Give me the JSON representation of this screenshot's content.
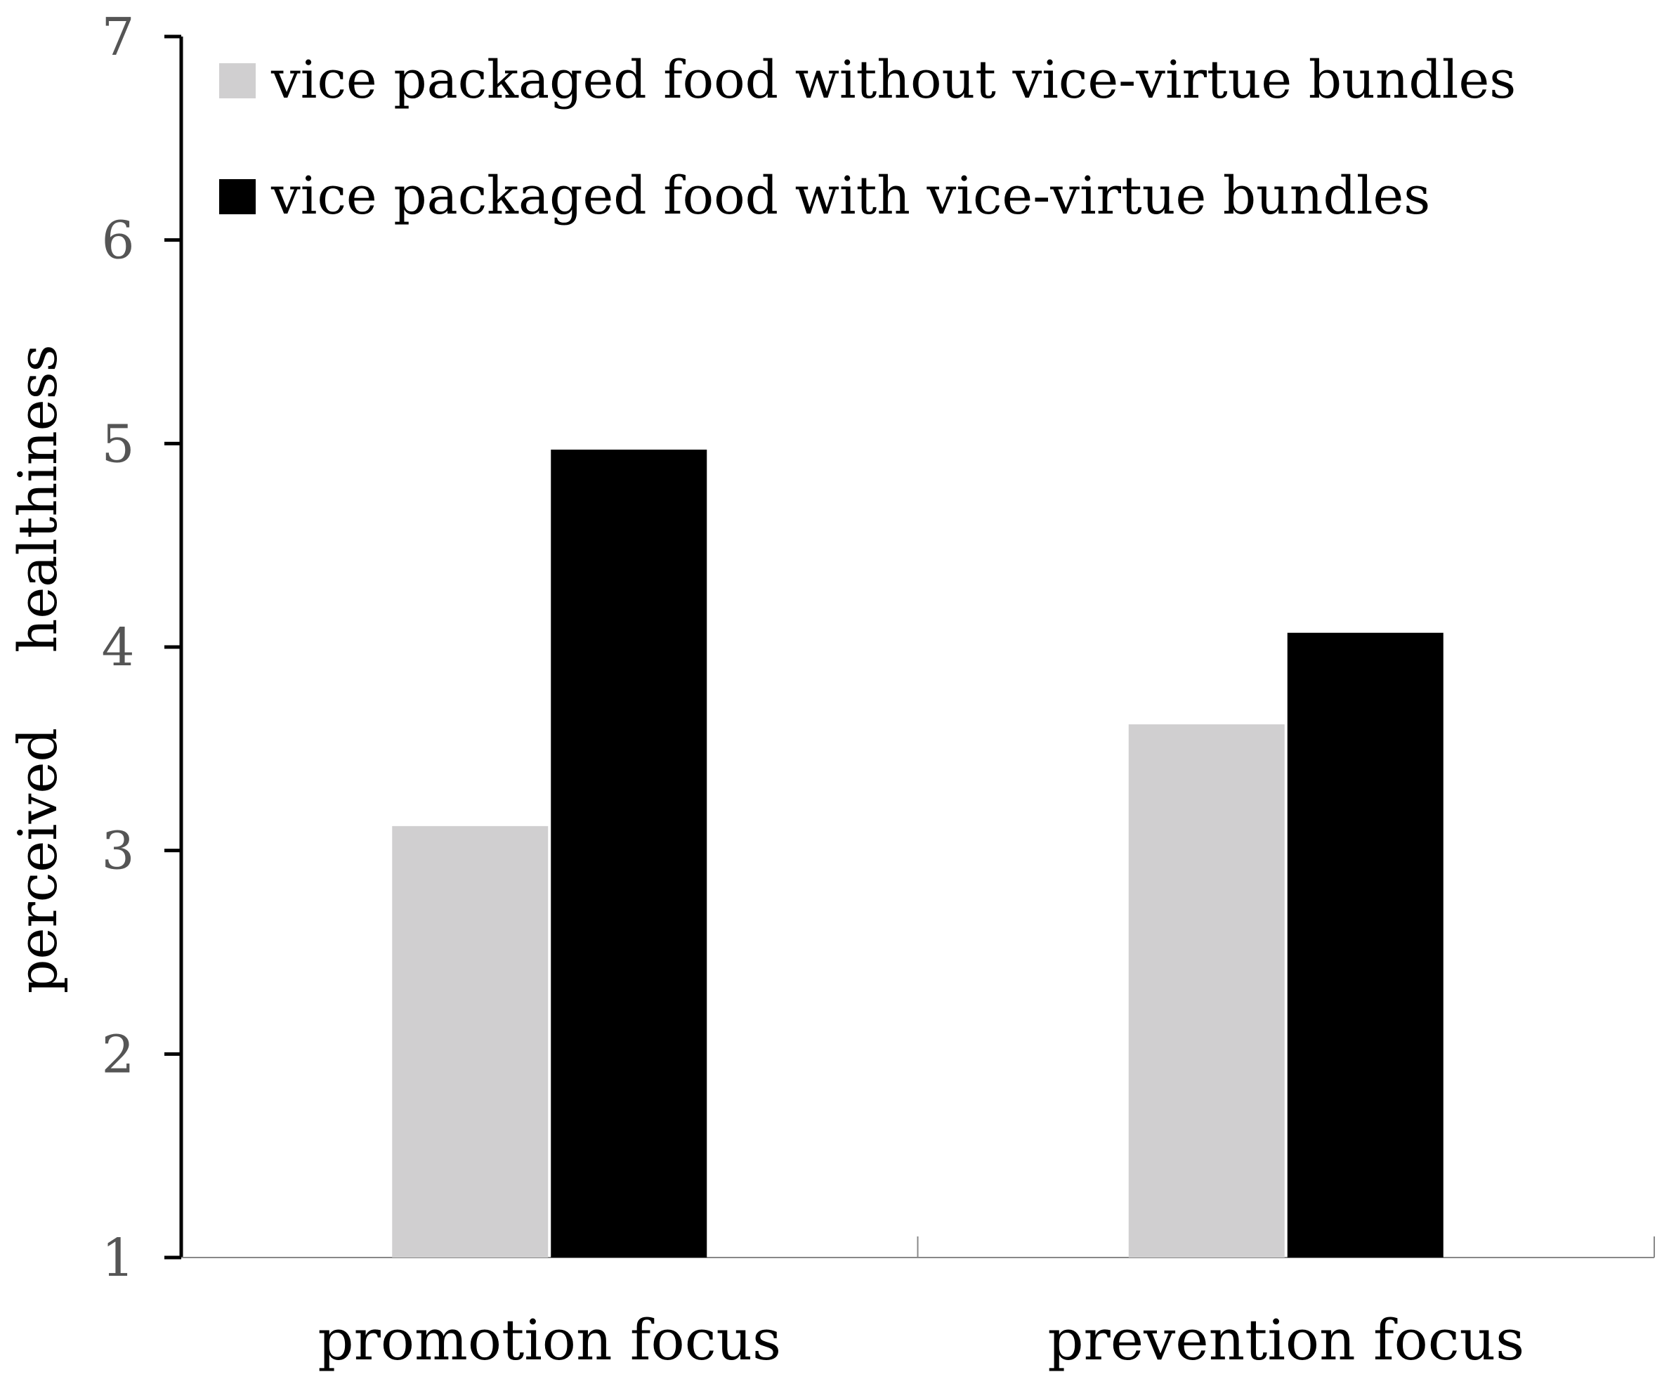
{
  "chart_data": {
    "type": "bar",
    "categories": [
      "promotion focus",
      "prevention focus"
    ],
    "series": [
      {
        "name": "vice packaged food without vice-virtue bundles",
        "values": [
          3.12,
          3.62
        ],
        "color": "#d0cfd0"
      },
      {
        "name": "vice packaged food with vice-virtue bundles",
        "values": [
          4.97,
          4.07
        ],
        "color": "#000000"
      }
    ],
    "ylabel_words": [
      "perceived",
      "healthiness"
    ],
    "xlabel": "",
    "title": "",
    "ylim": [
      1,
      7
    ],
    "yticks": [
      "1",
      "2",
      "3",
      "4",
      "5",
      "6",
      "7"
    ],
    "grid": false,
    "legend_position": "top-left"
  }
}
